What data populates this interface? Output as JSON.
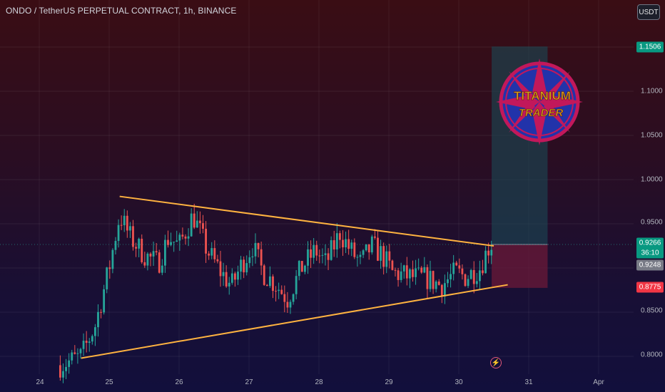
{
  "header": {
    "title": "ONDO / TetherUS PERPETUAL CONTRACT, 1h, BINANCE",
    "currency": "USDT"
  },
  "icons": {
    "alert": "lightning-icon"
  },
  "colors": {
    "up": "#26a69a",
    "down": "#ef5350",
    "trendline": "#ffb340",
    "target_zone": "#1b4a55",
    "stop_zone": "#6b1a38",
    "logo_ring": "#c2185b",
    "logo_fill": "#2233aa",
    "logo_text": "#d4a017"
  },
  "logo": {
    "line1": "TITANIUM",
    "line2": "TRADER"
  },
  "chart_data": {
    "type": "candlestick",
    "symbol": "ONDO / TetherUS PERPETUAL CONTRACT",
    "interval": "1h",
    "exchange": "BINANCE",
    "x_ticks": [
      "24",
      "25",
      "26",
      "27",
      "28",
      "29",
      "30",
      "31",
      "Apr"
    ],
    "y_ticks": [
      "1.1000",
      "1.0500",
      "1.0000",
      "0.9500",
      "0.8500",
      "0.8000"
    ],
    "ylim": [
      0.79,
      1.175
    ],
    "last_price": "0.9266",
    "countdown": "36:10",
    "price_labels": [
      {
        "value": "1.1506",
        "color": "#089981"
      },
      {
        "value": "0.9248",
        "color": "#787b86"
      },
      {
        "value": "0.8775",
        "color": "#f23645"
      }
    ],
    "trendlines": [
      {
        "name": "upper",
        "from": {
          "day": 25.15,
          "price": 0.981
        },
        "to": {
          "day": 30.5,
          "price": 0.925
        }
      },
      {
        "name": "lower",
        "from": {
          "day": 24.6,
          "price": 0.798
        },
        "to": {
          "day": 30.7,
          "price": 0.881
        }
      }
    ],
    "position": {
      "entry": 0.9266,
      "target": 1.1506,
      "stop": 0.8775,
      "start_day": 30.47,
      "end_day": 31.27
    },
    "series": [
      {
        "anchors": [
          [
            24.3,
            0.79
          ],
          [
            24.6,
            0.8
          ],
          [
            24.8,
            0.835
          ],
          [
            25.0,
            0.9
          ],
          [
            25.15,
            0.96
          ],
          [
            25.3,
            0.935
          ],
          [
            25.5,
            0.915
          ],
          [
            25.7,
            0.905
          ],
          [
            25.85,
            0.935
          ],
          [
            26.0,
            0.925
          ],
          [
            26.2,
            0.96
          ],
          [
            26.4,
            0.92
          ],
          [
            26.6,
            0.895
          ],
          [
            26.75,
            0.88
          ],
          [
            26.9,
            0.905
          ],
          [
            27.05,
            0.925
          ],
          [
            27.2,
            0.895
          ],
          [
            27.4,
            0.88
          ],
          [
            27.55,
            0.865
          ],
          [
            27.75,
            0.9
          ],
          [
            27.95,
            0.92
          ],
          [
            28.1,
            0.905
          ],
          [
            28.3,
            0.94
          ],
          [
            28.45,
            0.92
          ],
          [
            28.6,
            0.905
          ],
          [
            28.75,
            0.925
          ],
          [
            28.9,
            0.915
          ],
          [
            29.05,
            0.895
          ],
          [
            29.3,
            0.89
          ],
          [
            29.55,
            0.888
          ],
          [
            29.75,
            0.88
          ],
          [
            29.95,
            0.895
          ],
          [
            30.1,
            0.89
          ],
          [
            30.3,
            0.9
          ],
          [
            30.45,
            0.928
          ],
          [
            30.5,
            0.9266
          ]
        ]
      }
    ]
  }
}
